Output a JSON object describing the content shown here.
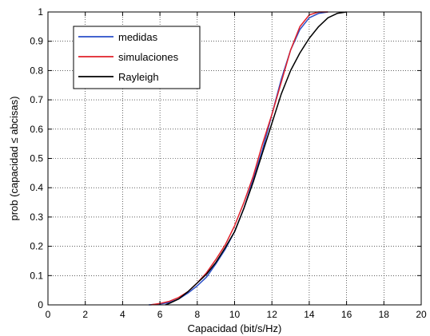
{
  "chart_data": {
    "type": "line",
    "title": "",
    "xlabel": "Capacidad (bit/s/Hz)",
    "ylabel": "prob (capacidad ≤ abcisas)",
    "xlim": [
      0,
      20
    ],
    "ylim": [
      0,
      1
    ],
    "xticks": [
      "0",
      "2",
      "4",
      "6",
      "8",
      "10",
      "12",
      "14",
      "16",
      "18",
      "20"
    ],
    "yticks": [
      "0",
      "0.1",
      "0.2",
      "0.3",
      "0.4",
      "0.5",
      "0.6",
      "0.7",
      "0.8",
      "0.9",
      "1"
    ],
    "grid": true,
    "legend_position": "top-left",
    "series": [
      {
        "name": "medidas",
        "color": "#2a4ec8",
        "x": [
          5.4,
          6.0,
          6.5,
          7.0,
          7.5,
          8.0,
          8.5,
          9.0,
          9.5,
          10.0,
          10.5,
          11.0,
          11.5,
          12.0,
          12.5,
          13.0,
          13.5,
          14.0,
          14.5,
          15.0
        ],
        "y": [
          0,
          0.003,
          0.008,
          0.02,
          0.04,
          0.065,
          0.095,
          0.14,
          0.19,
          0.25,
          0.33,
          0.43,
          0.53,
          0.65,
          0.77,
          0.87,
          0.94,
          0.98,
          0.995,
          1.0
        ]
      },
      {
        "name": "simulaciones",
        "color": "#e0202a",
        "x": [
          5.5,
          6.0,
          6.5,
          7.0,
          7.5,
          8.0,
          8.5,
          9.0,
          9.5,
          10.0,
          10.5,
          11.0,
          11.5,
          12.0,
          12.5,
          13.0,
          13.5,
          14.0,
          14.5,
          15.0
        ],
        "y": [
          0,
          0.005,
          0.012,
          0.025,
          0.045,
          0.075,
          0.11,
          0.155,
          0.205,
          0.27,
          0.35,
          0.44,
          0.55,
          0.65,
          0.76,
          0.87,
          0.95,
          0.99,
          1.0,
          1.0
        ]
      },
      {
        "name": "Rayleigh",
        "color": "#000000",
        "x": [
          6.3,
          6.5,
          7.0,
          7.5,
          8.0,
          8.5,
          9.0,
          9.5,
          10.0,
          10.5,
          11.0,
          11.5,
          12.0,
          12.5,
          13.0,
          13.5,
          14.0,
          14.5,
          15.0,
          15.5,
          16.0
        ],
        "y": [
          0,
          0.005,
          0.02,
          0.045,
          0.075,
          0.105,
          0.145,
          0.195,
          0.25,
          0.33,
          0.42,
          0.52,
          0.62,
          0.72,
          0.8,
          0.86,
          0.91,
          0.95,
          0.98,
          0.995,
          1.0
        ]
      }
    ]
  }
}
